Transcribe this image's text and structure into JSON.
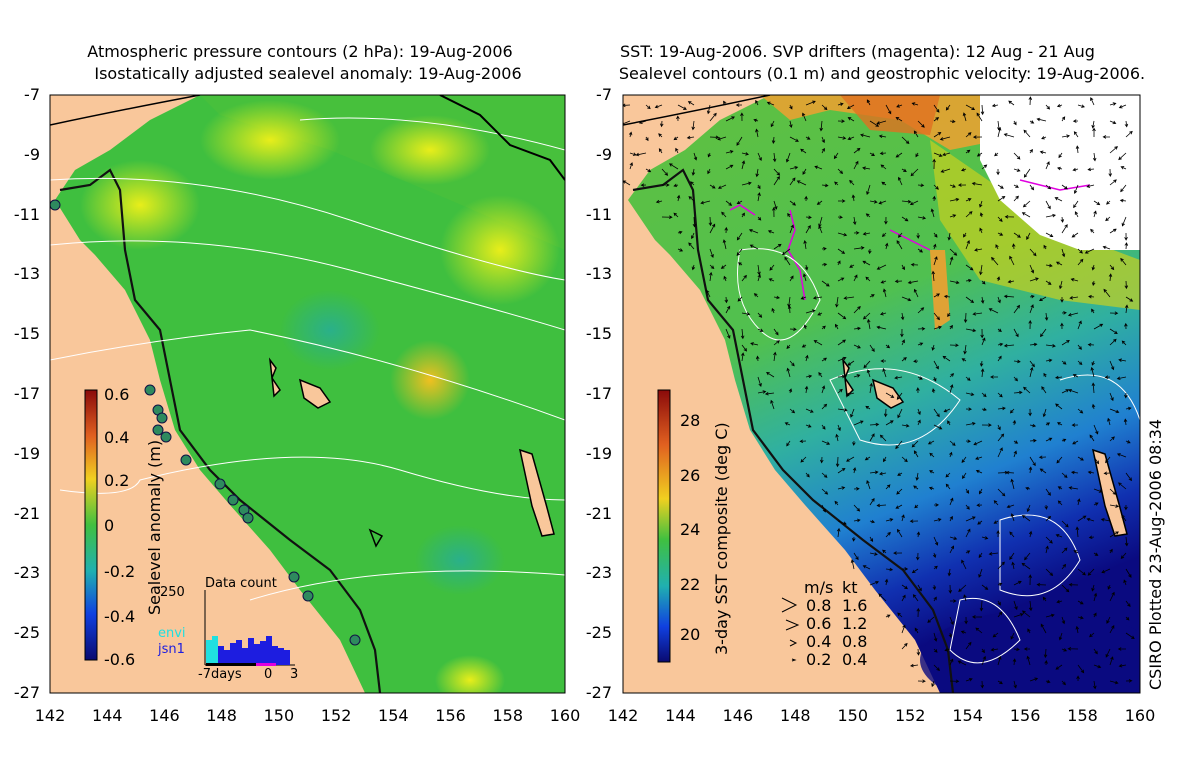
{
  "left_panel": {
    "title_line1": "Atmospheric pressure contours (2 hPa): 19-Aug-2006",
    "title_line2": "Isostatically adjusted sealevel anomaly: 19-Aug-2006",
    "colorbar_label": "Sealevel anomaly (m)",
    "colorbar_ticks": [
      "0.6",
      "0.4",
      "0.2",
      "0",
      "-0.2",
      "-0.4",
      "-0.6"
    ],
    "inset_title": "Data count",
    "inset_ymax": "250",
    "inset_legend": [
      "envi",
      "jsn1"
    ],
    "inset_xlabels": [
      "-7days",
      "0",
      "3"
    ]
  },
  "right_panel": {
    "title_line1": "SST: 19-Aug-2006. SVP drifters (magenta): 12 Aug - 21 Aug",
    "title_line2": "Sealevel contours (0.1 m) and geostrophic velocity: 19-Aug-2006.",
    "colorbar_label": "3-day SST composite (deg C)",
    "colorbar_ticks": [
      "28",
      "26",
      "24",
      "22",
      "20"
    ],
    "velocity_legend_header": [
      "m/s",
      "kt"
    ],
    "velocity_legend_rows": [
      [
        "0.8",
        "1.6"
      ],
      [
        "0.6",
        "1.2"
      ],
      [
        "0.4",
        "0.8"
      ],
      [
        "0.2",
        "0.4"
      ]
    ],
    "credit": "CSIRO Plotted 23-Aug-2006 08:34"
  },
  "axes": {
    "lat_ticks": [
      "-7",
      "-9",
      "-11",
      "-13",
      "-15",
      "-17",
      "-19",
      "-21",
      "-23",
      "-25",
      "-27"
    ],
    "lon_ticks": [
      "142",
      "144",
      "146",
      "148",
      "150",
      "152",
      "154",
      "156",
      "158",
      "160"
    ]
  },
  "colors": {
    "land": "#f9c79b",
    "sla_mid": "#3fbf3f",
    "sst_warm": "#f0a030",
    "sst_cold": "#10108a",
    "drifter": "#e000e0",
    "contour": "#ffffff"
  }
}
